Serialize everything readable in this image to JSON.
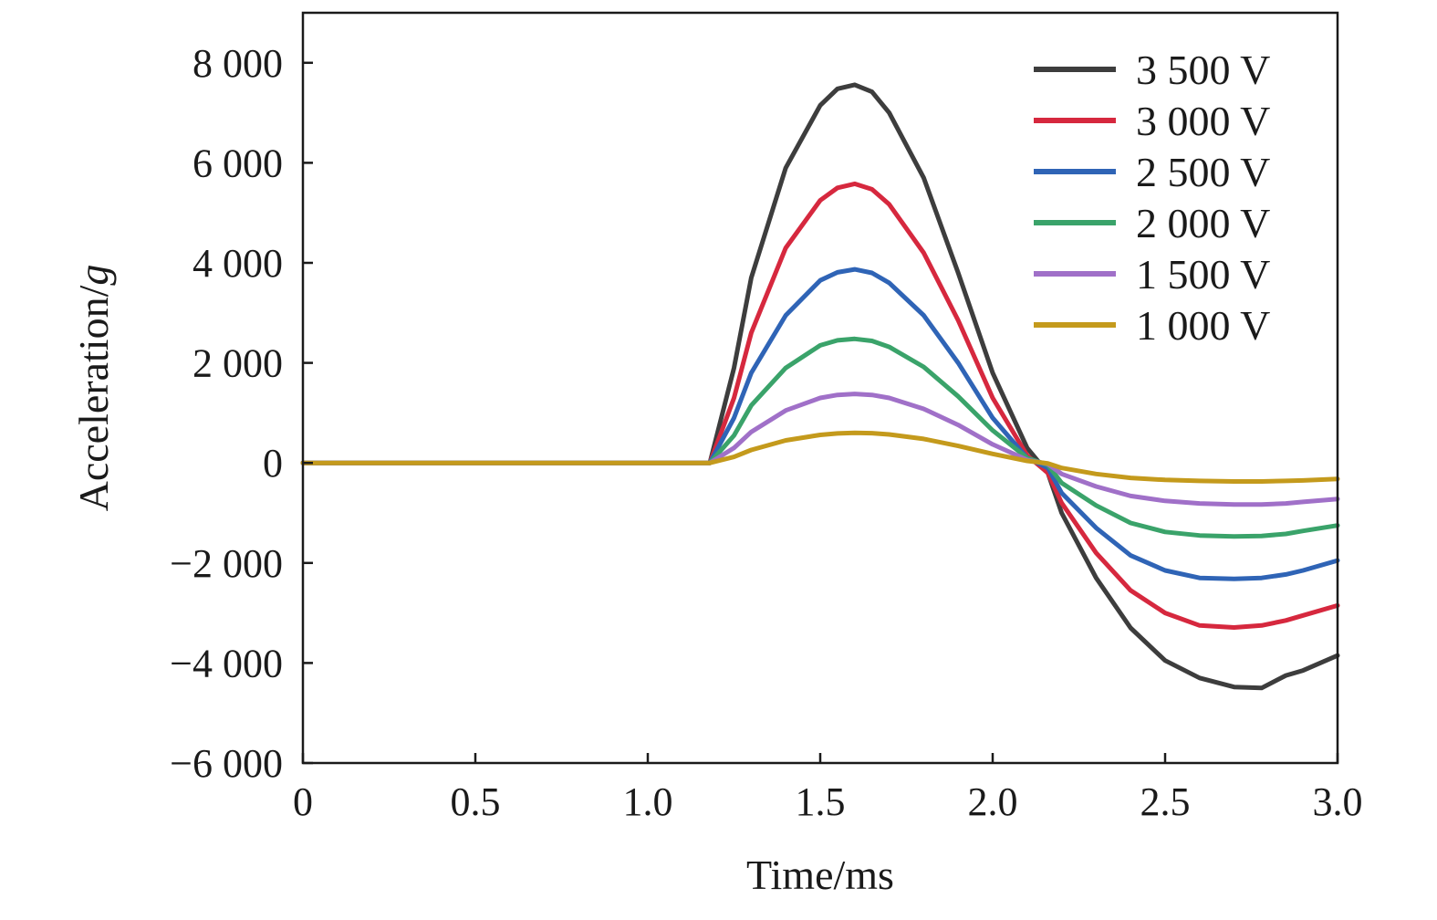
{
  "chart_data": {
    "type": "line",
    "xlabel": "Time/ms",
    "ylabel_main": "Acceleration/",
    "ylabel_unit": "g",
    "xlim": [
      0,
      3.0
    ],
    "ylim": [
      -6000,
      9000
    ],
    "x_ticks": [
      0,
      0.5,
      1.0,
      1.5,
      2.0,
      2.5,
      3.0
    ],
    "x_tick_labels": [
      "0",
      "0.5",
      "1.0",
      "1.5",
      "2.0",
      "2.5",
      "3.0"
    ],
    "y_ticks": [
      -6000,
      -4000,
      -2000,
      0,
      2000,
      4000,
      6000,
      8000
    ],
    "y_tick_labels": [
      "−6 000",
      "−4 000",
      "−2 000",
      "0",
      "2 000",
      "4 000",
      "6 000",
      "8 000"
    ],
    "grid": false,
    "legend_position": "top-right",
    "x": [
      0,
      0.5,
      1.0,
      1.18,
      1.25,
      1.3,
      1.4,
      1.5,
      1.55,
      1.6,
      1.65,
      1.7,
      1.8,
      1.9,
      2.0,
      2.1,
      2.16,
      2.2,
      2.3,
      2.4,
      2.5,
      2.6,
      2.7,
      2.78,
      2.85,
      2.9,
      3.0
    ],
    "series": [
      {
        "name": "3 500 V",
        "color": "#3d3d3d",
        "values": [
          0,
          0,
          0,
          0,
          1900,
          3700,
          5900,
          7150,
          7480,
          7560,
          7420,
          7000,
          5700,
          3800,
          1800,
          300,
          -200,
          -1000,
          -2300,
          -3300,
          -3950,
          -4300,
          -4480,
          -4500,
          -4250,
          -4150,
          -3850
        ]
      },
      {
        "name": "3 000 V",
        "color": "#d6283e",
        "values": [
          0,
          0,
          0,
          0,
          1300,
          2600,
          4300,
          5250,
          5500,
          5580,
          5470,
          5170,
          4200,
          2850,
          1300,
          150,
          -200,
          -800,
          -1800,
          -2550,
          -3000,
          -3250,
          -3290,
          -3250,
          -3150,
          -3050,
          -2850
        ]
      },
      {
        "name": "2 500 V",
        "color": "#2f64b6",
        "values": [
          0,
          0,
          0,
          0,
          900,
          1800,
          2950,
          3650,
          3810,
          3870,
          3800,
          3600,
          2950,
          2000,
          900,
          100,
          -100,
          -600,
          -1300,
          -1850,
          -2150,
          -2300,
          -2320,
          -2300,
          -2230,
          -2150,
          -1950
        ]
      },
      {
        "name": "2 000 V",
        "color": "#3aa36a",
        "values": [
          0,
          0,
          0,
          0,
          550,
          1150,
          1900,
          2350,
          2450,
          2480,
          2440,
          2320,
          1920,
          1330,
          650,
          100,
          -40,
          -400,
          -850,
          -1200,
          -1380,
          -1450,
          -1470,
          -1460,
          -1420,
          -1360,
          -1250
        ]
      },
      {
        "name": "1 500 V",
        "color": "#a070c8",
        "values": [
          0,
          0,
          0,
          0,
          300,
          620,
          1050,
          1300,
          1360,
          1380,
          1360,
          1300,
          1080,
          760,
          370,
          60,
          -20,
          -220,
          -470,
          -660,
          -760,
          -810,
          -830,
          -830,
          -810,
          -780,
          -720
        ]
      },
      {
        "name": "1 000 V",
        "color": "#c49a1c",
        "values": [
          0,
          0,
          0,
          0,
          120,
          260,
          450,
          560,
          590,
          600,
          595,
          570,
          480,
          340,
          180,
          40,
          -10,
          -100,
          -220,
          -300,
          -340,
          -360,
          -370,
          -370,
          -360,
          -350,
          -320
        ]
      }
    ]
  }
}
